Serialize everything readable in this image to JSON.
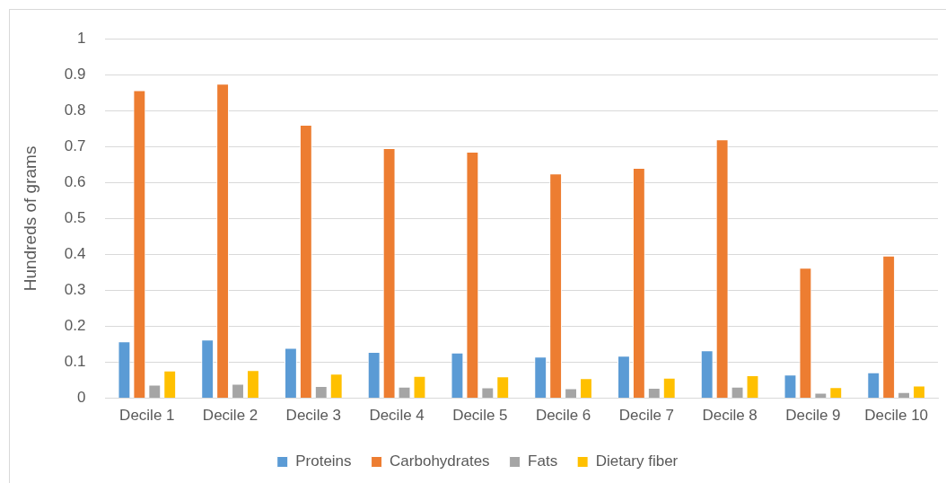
{
  "chart_data": {
    "type": "bar",
    "ylabel": "Hundreds of grams",
    "categories": [
      "Decile 1",
      "Decile 2",
      "Decile 3",
      "Decile 4",
      "Decile 5",
      "Decile 6",
      "Decile 7",
      "Decile 8",
      "Decile 9",
      "Decile 10"
    ],
    "series": [
      {
        "name": "Proteins",
        "color": "#5b9bd5",
        "values": [
          0.158,
          0.163,
          0.14,
          0.129,
          0.127,
          0.116,
          0.118,
          0.133,
          0.066,
          0.072
        ]
      },
      {
        "name": "Carbohydrates",
        "color": "#ed7d31",
        "values": [
          0.857,
          0.875,
          0.761,
          0.696,
          0.686,
          0.625,
          0.641,
          0.72,
          0.363,
          0.397
        ]
      },
      {
        "name": "Fats",
        "color": "#a5a5a5",
        "values": [
          0.038,
          0.04,
          0.034,
          0.032,
          0.03,
          0.028,
          0.029,
          0.032,
          0.015,
          0.017
        ]
      },
      {
        "name": "Dietary fiber",
        "color": "#ffc000",
        "values": [
          0.077,
          0.078,
          0.068,
          0.062,
          0.061,
          0.056,
          0.057,
          0.064,
          0.031,
          0.035
        ]
      }
    ],
    "ylim": [
      0,
      1
    ],
    "yticks": [
      0,
      0.1,
      0.2,
      0.3,
      0.4,
      0.5,
      0.6,
      0.7,
      0.8,
      0.9,
      1
    ],
    "grid": "y",
    "legend": "bottom"
  }
}
